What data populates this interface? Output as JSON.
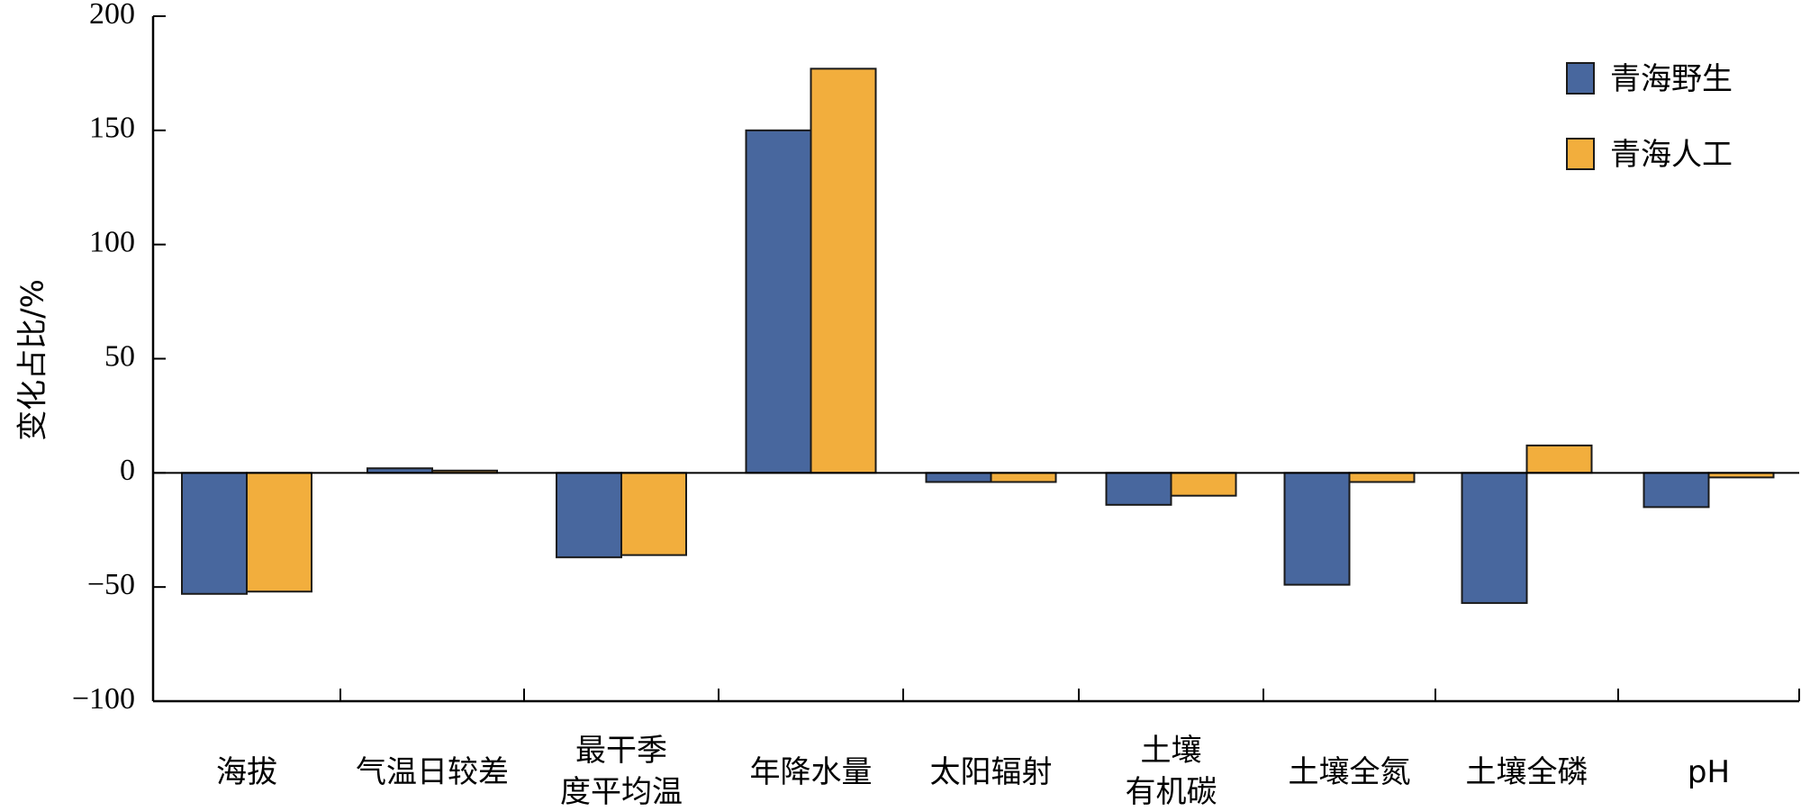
{
  "chart_data": {
    "type": "bar",
    "title": "",
    "xlabel": "",
    "ylabel": "变化占比/%",
    "ylim": [
      -100,
      200
    ],
    "yticks": [
      200,
      150,
      100,
      50,
      0,
      -50,
      -100
    ],
    "ytick_labels": [
      "200",
      "150",
      "100",
      "50",
      "0",
      "−50",
      "−100"
    ],
    "grid": false,
    "legend_position": "top-right",
    "categories": [
      [
        "海拔"
      ],
      [
        "气温日较差"
      ],
      [
        "最干季",
        "度平均温"
      ],
      [
        "年降水量"
      ],
      [
        "太阳辐射"
      ],
      [
        "土壤",
        "有机碳"
      ],
      [
        "土壤全氮"
      ],
      [
        "土壤全磷"
      ],
      [
        "pH"
      ]
    ],
    "series": [
      {
        "name": "青海野生",
        "color": "#48679e",
        "values": [
          -53,
          2,
          -37,
          150,
          -4,
          -14,
          -49,
          -57,
          -15
        ]
      },
      {
        "name": "青海人工",
        "color": "#f2ae3d",
        "values": [
          -52,
          1,
          -36,
          177,
          -4,
          -10,
          -4,
          12,
          -2
        ]
      }
    ]
  }
}
